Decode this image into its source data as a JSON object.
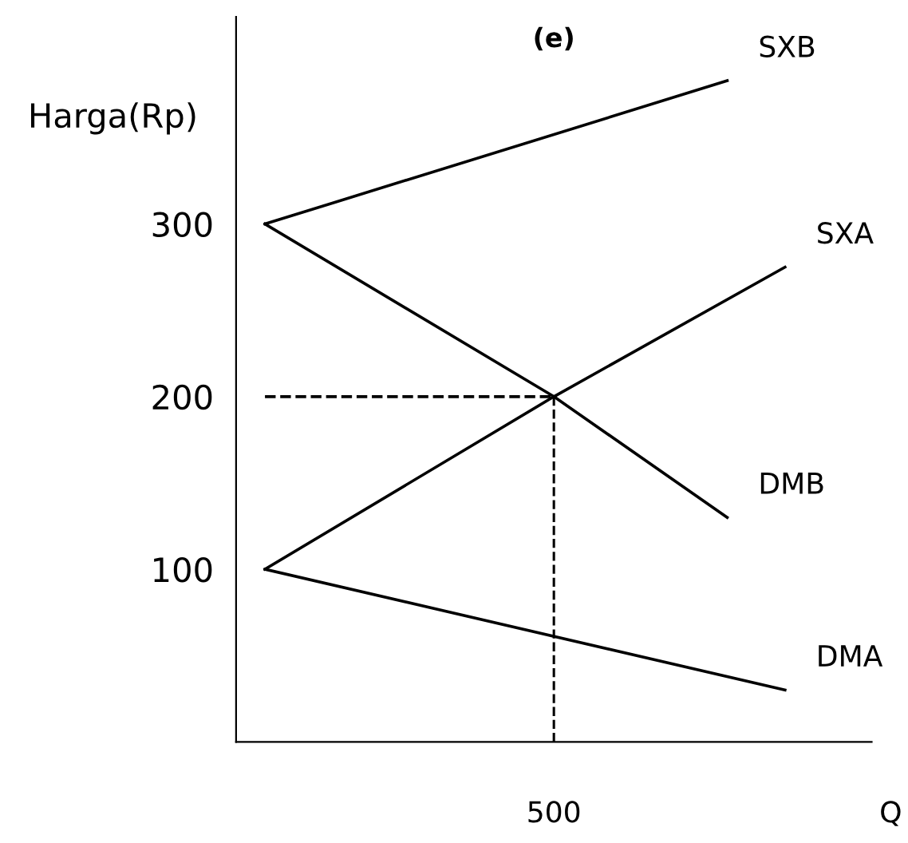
{
  "chart_data": {
    "type": "line",
    "title": "(e)",
    "ylabel": "Harga(Rp)",
    "annotations": [
      "500",
      "Q"
    ],
    "categories": [
      null,
      null,
      null,
      null,
      null,
      null,
      null,
      null,
      null,
      null,
      null
    ],
    "ylim": [
      0,
      420
    ],
    "yticks": [
      100,
      200,
      300
    ],
    "grid": false,
    "legend": false,
    "marker": "none",
    "line_style": "solid",
    "series": [
      {
        "name": "SXB",
        "color": "#000000",
        "values": [
          300,
          null,
          null,
          null,
          null,
          null,
          null,
          null,
          383,
          null,
          null
        ]
      },
      {
        "name": "SXA",
        "color": "#000000",
        "values": [
          100,
          null,
          null,
          null,
          null,
          200,
          null,
          null,
          null,
          275,
          null
        ]
      },
      {
        "name": "DMB",
        "color": "#000000",
        "values": [
          300,
          null,
          null,
          null,
          null,
          200,
          null,
          null,
          130,
          null,
          null
        ]
      },
      {
        "name": "DMA",
        "color": "#000000",
        "values": [
          100,
          null,
          null,
          null,
          null,
          null,
          null,
          null,
          null,
          30,
          null
        ]
      },
      {
        "color": "#000000",
        "line_style": "dashed",
        "values": [
          200,
          200,
          200,
          200,
          200,
          200,
          null,
          null,
          null,
          null,
          null
        ],
        "errors": [
          null,
          null,
          null,
          null,
          null,
          [
            0,
            200
          ],
          null,
          null,
          null,
          null,
          null
        ]
      }
    ]
  }
}
